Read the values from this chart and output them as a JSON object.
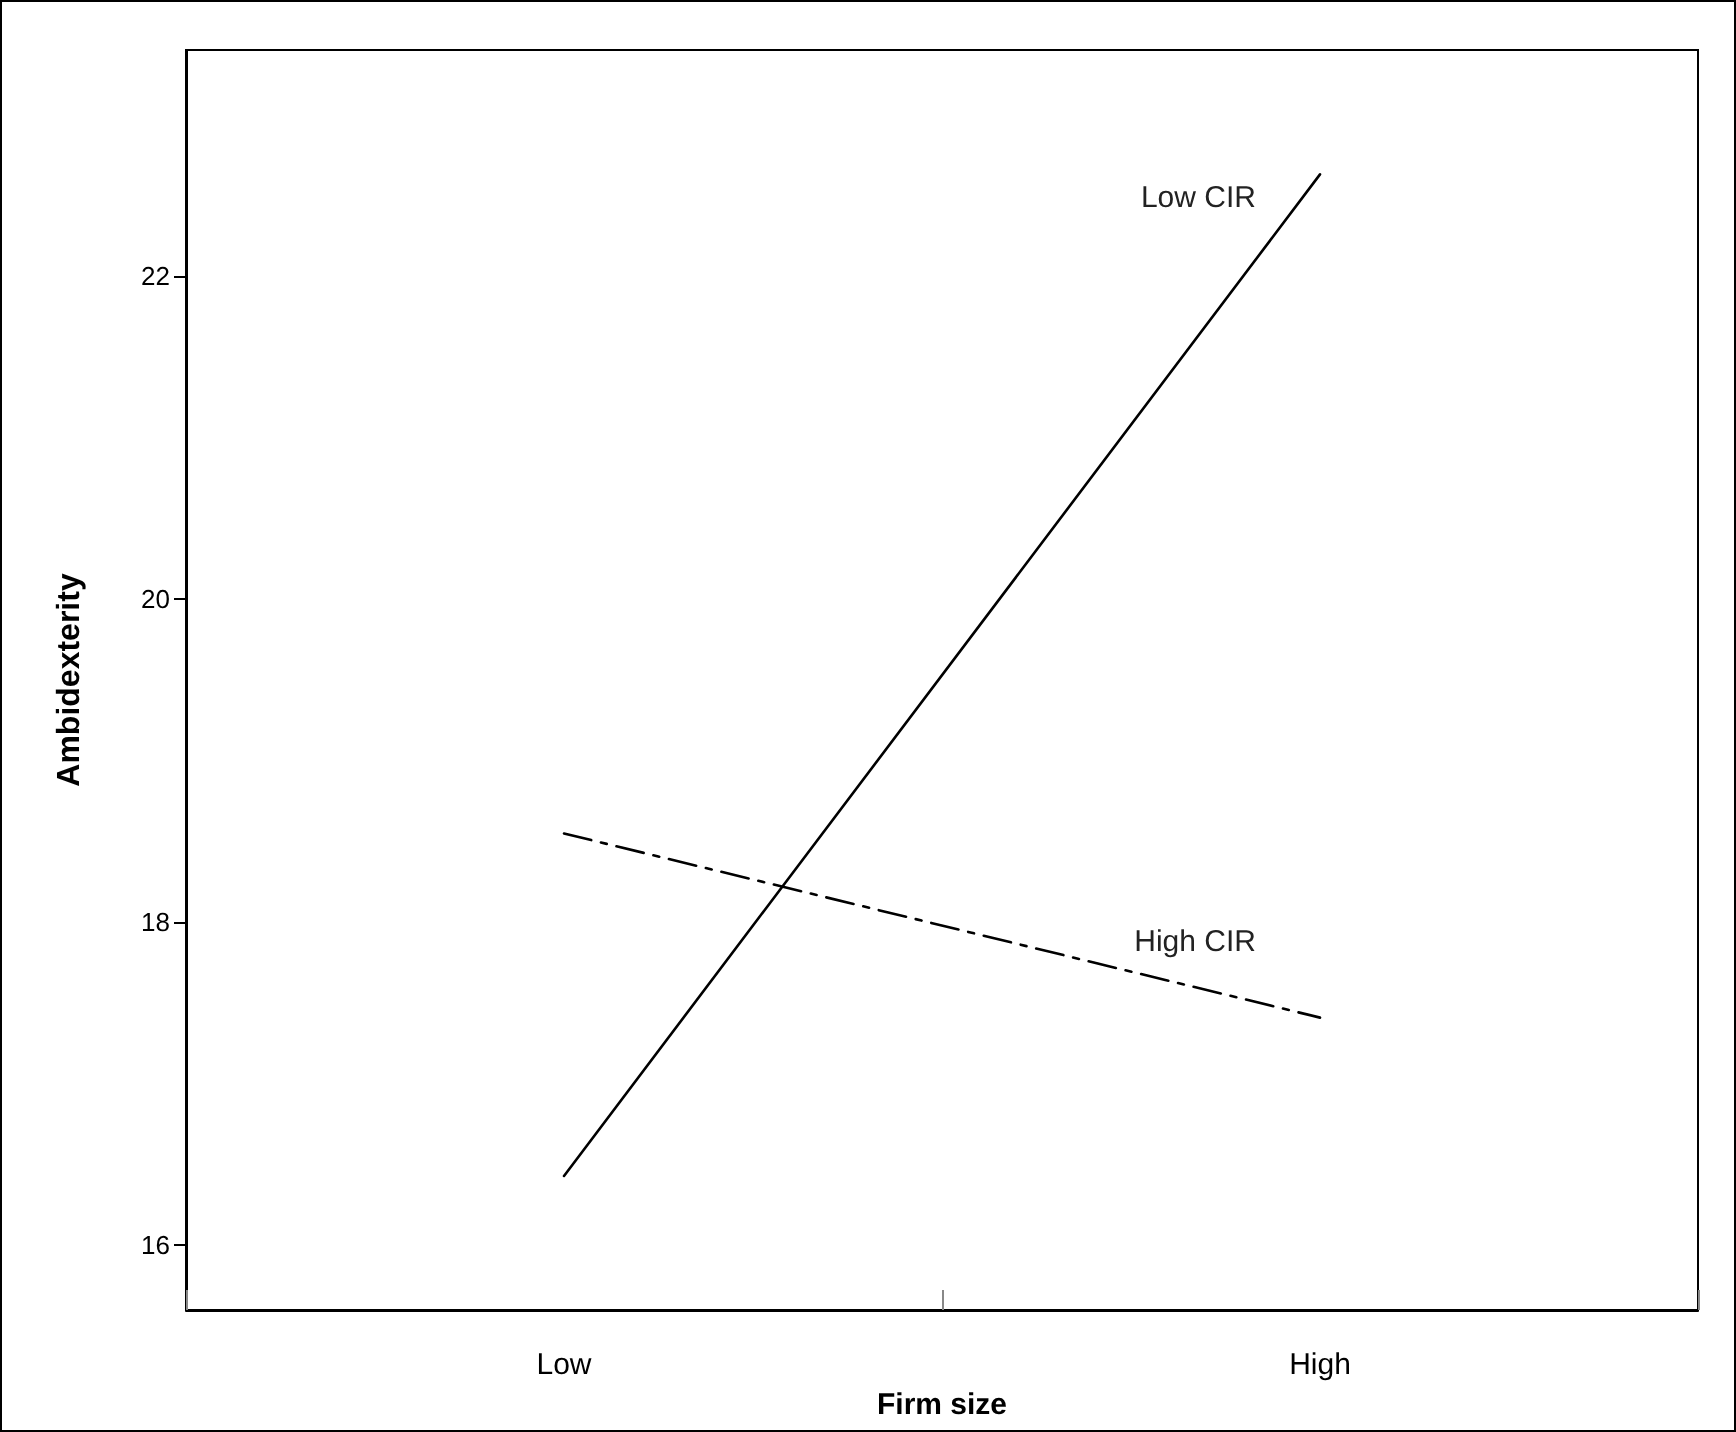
{
  "chart_data": {
    "type": "line",
    "xlabel": "Firm size",
    "ylabel": "Ambidexterity",
    "categories": [
      "Low",
      "High"
    ],
    "series": [
      {
        "name": "Low CIR",
        "color": "#000000",
        "values": [
          16.43,
          22.63
        ],
        "line_style": "solid"
      },
      {
        "name": "High CIR",
        "color": "#000000",
        "values": [
          18.55,
          17.41
        ],
        "line_style": "dashed"
      }
    ],
    "ylim": [
      15.6,
      23.4
    ],
    "yticks": [
      16,
      18,
      20,
      22
    ],
    "grid": false,
    "legend": false,
    "marker": "none"
  }
}
